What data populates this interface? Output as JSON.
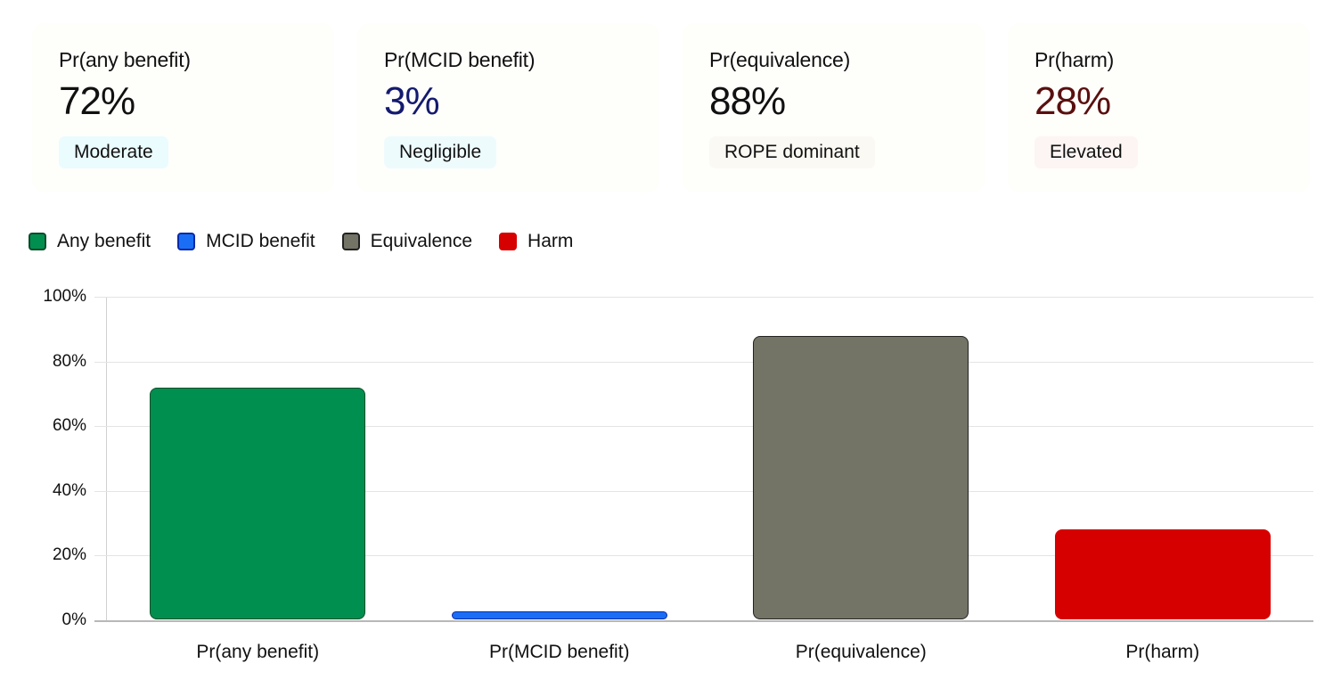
{
  "cards": [
    {
      "label": "Pr(any benefit)",
      "value": "72%",
      "value_color": "#111111",
      "badge": "Moderate",
      "badge_bg": "#eafcfd"
    },
    {
      "label": "Pr(MCID benefit)",
      "value": "3%",
      "value_color": "#141a6e",
      "badge": "Negligible",
      "badge_bg": "#eefbfd"
    },
    {
      "label": "Pr(equivalence)",
      "value": "88%",
      "value_color": "#111111",
      "badge": "ROPE dominant",
      "badge_bg": "#fbf9f3"
    },
    {
      "label": "Pr(harm)",
      "value": "28%",
      "value_color": "#5a0f0f",
      "badge": "Elevated",
      "badge_bg": "#fcf5f3"
    }
  ],
  "legend": [
    {
      "label": "Any benefit",
      "color": "#008f4f",
      "border": "#0d4d2a"
    },
    {
      "label": "MCID benefit",
      "color": "#1a6ef5",
      "border": "#0a2aa8"
    },
    {
      "label": "Equivalence",
      "color": "#737366",
      "border": "#222222"
    },
    {
      "label": "Harm",
      "color": "#d60000",
      "border": "#d60000"
    }
  ],
  "chart_data": {
    "type": "bar",
    "title": "",
    "xlabel": "",
    "ylabel": "",
    "categories": [
      "Pr(any benefit)",
      "Pr(MCID benefit)",
      "Pr(equivalence)",
      "Pr(harm)"
    ],
    "values": [
      72,
      3,
      88,
      28
    ],
    "colors": [
      "#008f4f",
      "#1a6ef5",
      "#737366",
      "#d60000"
    ],
    "ylim": [
      0,
      100
    ],
    "yticks": [
      "0%",
      "20%",
      "40%",
      "60%",
      "80%",
      "100%"
    ],
    "grid": true,
    "legend_position": "top-left"
  }
}
